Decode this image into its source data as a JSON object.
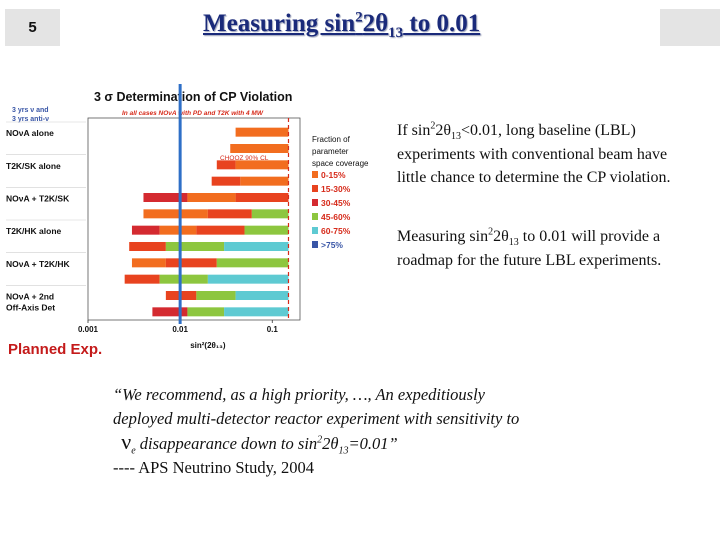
{
  "slide": {
    "number": "5"
  },
  "title": {
    "pre": "Measuring sin",
    "sup": "2",
    "mid": "2θ",
    "sub": "13",
    "post": " to 0.01"
  },
  "chart_data": {
    "type": "bar",
    "title": "3 σ Determination of CP Violation",
    "subtitle": "In all cases NOνA with PD and T2K with 4 MW",
    "top_left_note": [
      "3 yrs ν and",
      "3 yrs anti-ν"
    ],
    "xlabel": "sin²(2θ₁₃)",
    "xscale": "log",
    "xlim": [
      0.001,
      0.2
    ],
    "xticks": [
      "0.001",
      "0.01",
      "0.1"
    ],
    "reference_line": {
      "label": "CHOOZ 90% CL",
      "x": 0.15
    },
    "highlight_line": {
      "x": 0.01,
      "color": "#2e6fc7"
    },
    "legend": {
      "title": [
        "Fraction of",
        "parameter",
        "space coverage"
      ],
      "position": "top-right",
      "items": [
        {
          "label": "0-15%",
          "color": "#f26d1f",
          "text_color": "#d62a1a"
        },
        {
          "label": "15-30%",
          "color": "#e8431f",
          "text_color": "#d62a1a"
        },
        {
          "label": "30-45%",
          "color": "#d42a30",
          "text_color": "#d62a1a"
        },
        {
          "label": "45-60%",
          "color": "#8dc63f",
          "text_color": "#d62a1a"
        },
        {
          "label": "60-75%",
          "color": "#5ecad2",
          "text_color": "#d62a1a"
        },
        {
          "label": ">75%",
          "color": "#3855a6",
          "text_color": "#3855a6"
        }
      ]
    },
    "rows": [
      {
        "label": "NOνA alone",
        "segments": [
          {
            "from": 0.04,
            "to": 0.15,
            "c": 0
          }
        ]
      },
      {
        "label": "",
        "segments": [
          {
            "from": 0.035,
            "to": 0.15,
            "c": 0
          }
        ]
      },
      {
        "label": "T2K/SK alone",
        "segments": [
          {
            "from": 0.025,
            "to": 0.04,
            "c": 1
          },
          {
            "from": 0.04,
            "to": 0.15,
            "c": 0
          }
        ]
      },
      {
        "label": "",
        "segments": [
          {
            "from": 0.022,
            "to": 0.045,
            "c": 1
          },
          {
            "from": 0.045,
            "to": 0.15,
            "c": 0
          }
        ]
      },
      {
        "label": "NOνA + T2K/SK",
        "segments": [
          {
            "from": 0.004,
            "to": 0.012,
            "c": 2
          },
          {
            "from": 0.012,
            "to": 0.04,
            "c": 0
          },
          {
            "from": 0.04,
            "to": 0.15,
            "c": 1
          }
        ]
      },
      {
        "label": "",
        "segments": [
          {
            "from": 0.004,
            "to": 0.02,
            "c": 0
          },
          {
            "from": 0.02,
            "to": 0.06,
            "c": 1
          },
          {
            "from": 0.06,
            "to": 0.15,
            "c": 3
          }
        ]
      },
      {
        "label": "T2K/HK alone",
        "segments": [
          {
            "from": 0.003,
            "to": 0.006,
            "c": 2
          },
          {
            "from": 0.006,
            "to": 0.015,
            "c": 0
          },
          {
            "from": 0.015,
            "to": 0.05,
            "c": 1
          },
          {
            "from": 0.05,
            "to": 0.15,
            "c": 3
          }
        ]
      },
      {
        "label": "",
        "segments": [
          {
            "from": 0.0028,
            "to": 0.007,
            "c": 1
          },
          {
            "from": 0.007,
            "to": 0.03,
            "c": 3
          },
          {
            "from": 0.03,
            "to": 0.15,
            "c": 4
          }
        ]
      },
      {
        "label": "NOνA + T2K/HK",
        "segments": [
          {
            "from": 0.003,
            "to": 0.007,
            "c": 0
          },
          {
            "from": 0.007,
            "to": 0.025,
            "c": 1
          },
          {
            "from": 0.025,
            "to": 0.15,
            "c": 3
          }
        ]
      },
      {
        "label": "",
        "segments": [
          {
            "from": 0.0025,
            "to": 0.006,
            "c": 1
          },
          {
            "from": 0.006,
            "to": 0.02,
            "c": 3
          },
          {
            "from": 0.02,
            "to": 0.15,
            "c": 4
          }
        ]
      },
      {
        "label": "NOνA + 2nd Off-Axis Det",
        "segments": [
          {
            "from": 0.007,
            "to": 0.015,
            "c": 1
          },
          {
            "from": 0.015,
            "to": 0.04,
            "c": 3
          },
          {
            "from": 0.04,
            "to": 0.15,
            "c": 4
          }
        ]
      },
      {
        "label": "",
        "segments": [
          {
            "from": 0.005,
            "to": 0.012,
            "c": 2
          },
          {
            "from": 0.012,
            "to": 0.03,
            "c": 3
          },
          {
            "from": 0.03,
            "to": 0.15,
            "c": 4
          }
        ]
      }
    ]
  },
  "bullets": {
    "b1": {
      "pre": "If sin",
      "sup": "2",
      "mid": "2θ",
      "sub": "13",
      "post": "<0.01, long baseline (LBL) experiments with conventional beam have little chance to determine the CP violation."
    },
    "b2": {
      "pre": "Measuring sin",
      "sup": "2",
      "mid": "2θ",
      "sub": "13",
      "post": " to 0.01 will provide a roadmap for the future LBL experiments."
    }
  },
  "planned_label": "Planned Exp.",
  "quote": {
    "line1": "“We recommend, as a high priority, …, An expeditiously",
    "line2": "deployed multi-detector reactor experiment with sensitivity to",
    "nu": "ν",
    "nu_sub": "e",
    "line3_mid": " disappearance down to sin",
    "line3_sup": "2",
    "line3_theta": "2θ",
    "line3_sub": "13",
    "line3_end": "=0.01”",
    "attribution": "---- APS Neutrino Study, 2004"
  }
}
